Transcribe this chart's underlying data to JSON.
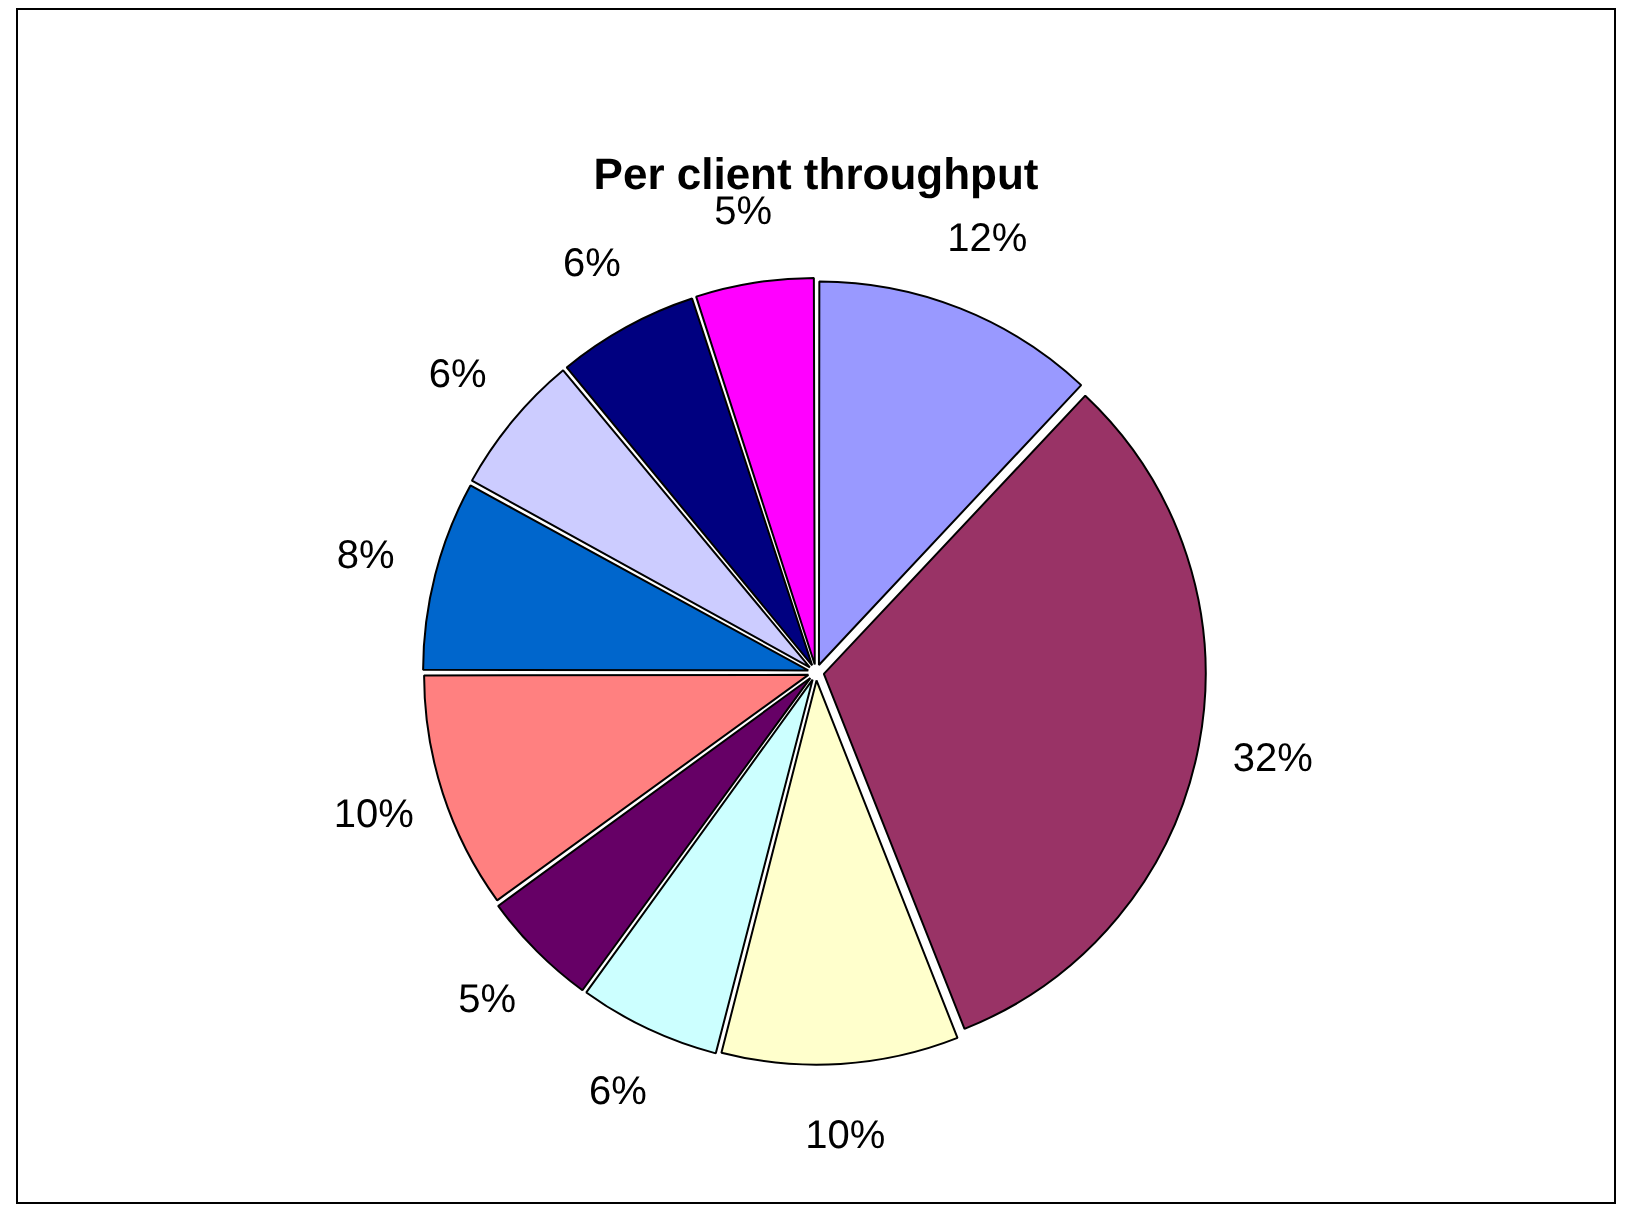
{
  "chart_data": {
    "type": "pie",
    "title": "Per client throughput",
    "categories": [
      null,
      null,
      null,
      null,
      null,
      null,
      null,
      null,
      null,
      null
    ],
    "values": [
      12,
      32,
      10,
      6,
      5,
      10,
      8,
      6,
      6,
      5
    ],
    "colors": [
      "#9999ff",
      "#993366",
      "#ffffcc",
      "#ccffff",
      "#660066",
      "#ff8080",
      "#0066cc",
      "#ccccff",
      "#000080",
      "#ff00ff"
    ],
    "value_labels": [
      "12%",
      "32%",
      "10%",
      "6%",
      "5%",
      "10%",
      "8%",
      "6%",
      "6%",
      "5%"
    ],
    "legend": false
  }
}
